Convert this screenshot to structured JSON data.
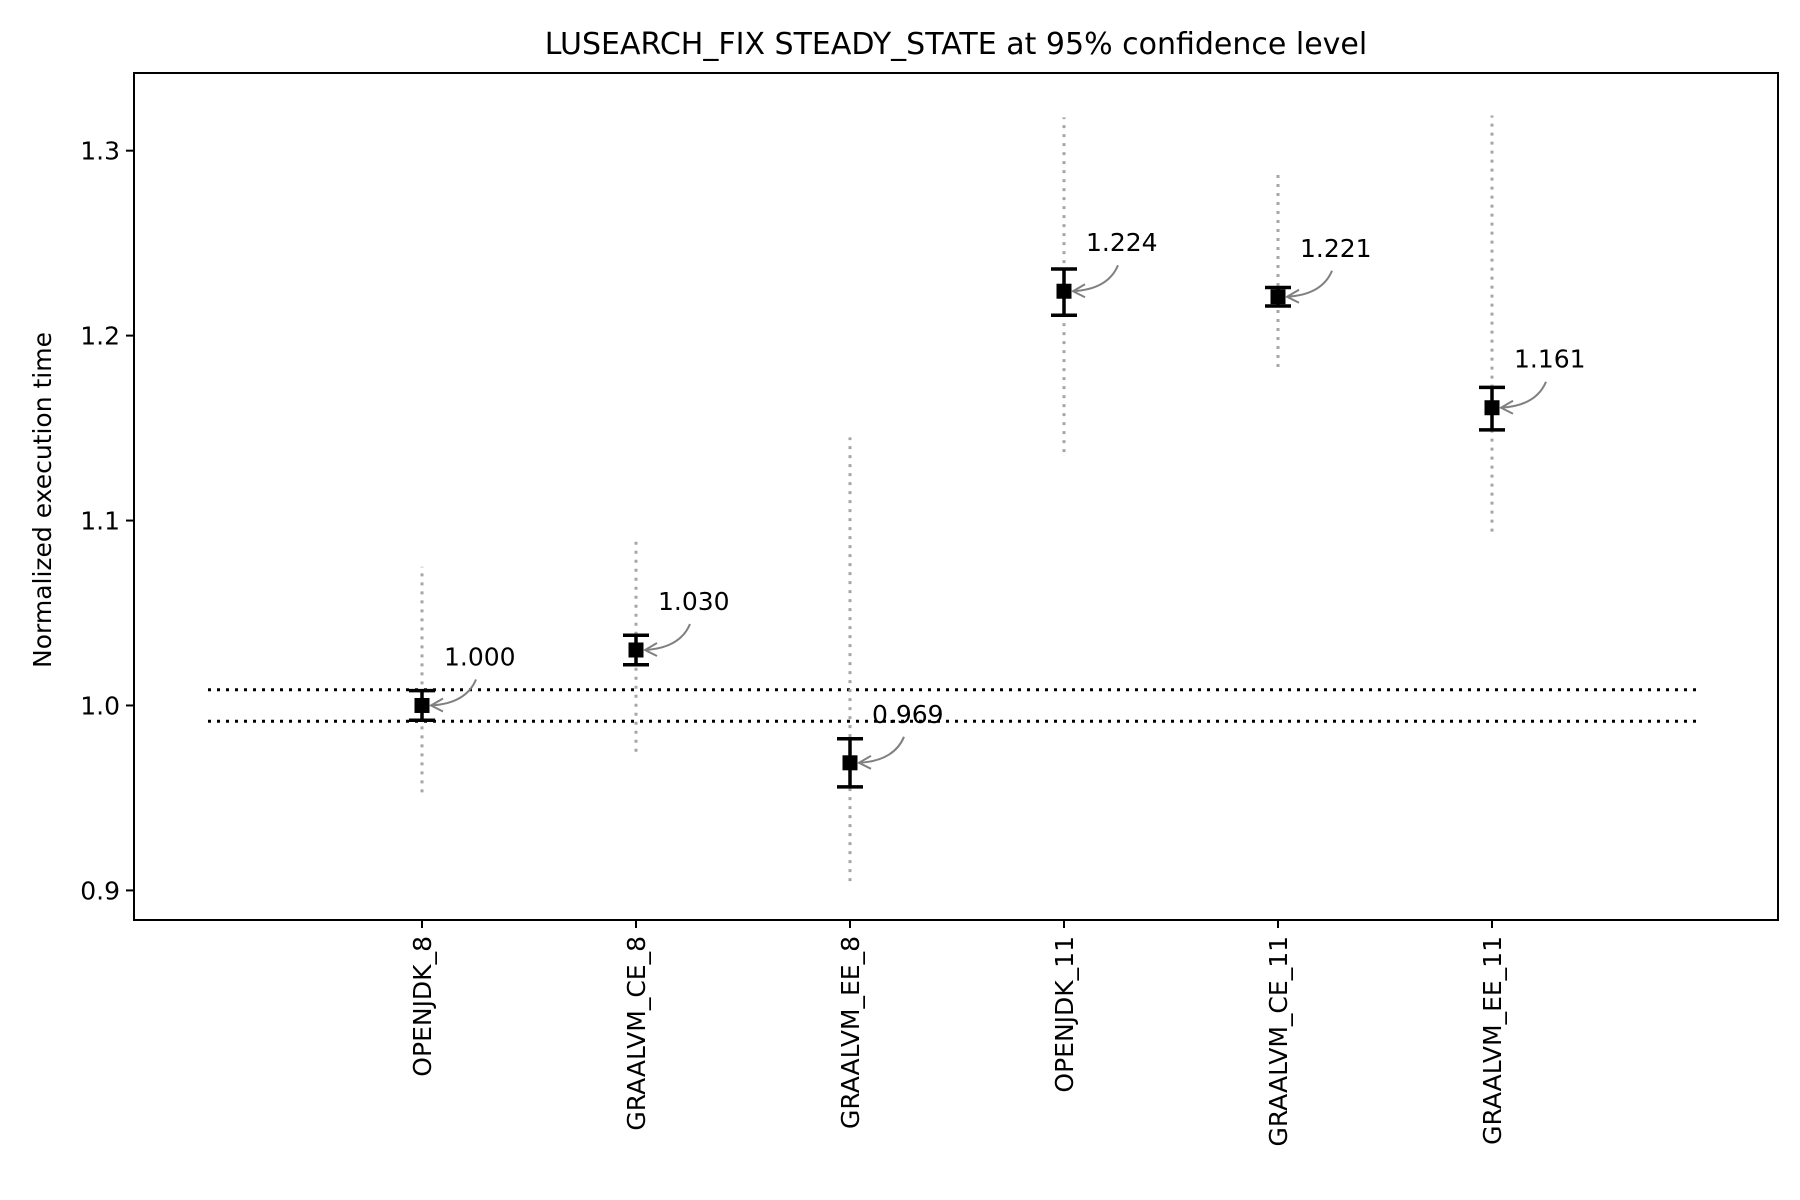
{
  "chart_data": {
    "type": "scatter",
    "title": "LUSEARCH_FIX STEADY_STATE at 95% confidence level",
    "xlabel": "",
    "ylabel": "Normalized execution time",
    "categories": [
      "OPENJDK_8",
      "GRAALVM_CE_8",
      "GRAALVM_EE_8",
      "OPENJDK_11",
      "GRAALVM_CE_11",
      "GRAALVM_EE_11"
    ],
    "values": [
      1.0,
      1.03,
      0.969,
      1.224,
      1.221,
      1.161
    ],
    "value_labels": [
      "1.000",
      "1.030",
      "0.969",
      "1.224",
      "1.221",
      "1.161"
    ],
    "ci_low": [
      0.992,
      1.022,
      0.956,
      1.211,
      1.216,
      1.149
    ],
    "ci_high": [
      1.008,
      1.038,
      0.982,
      1.236,
      1.226,
      1.172
    ],
    "range_low": [
      0.953,
      0.975,
      0.905,
      1.137,
      1.183,
      1.094
    ],
    "range_high": [
      1.075,
      1.091,
      1.145,
      1.318,
      1.288,
      1.319
    ],
    "reference_lines": [
      1.0085,
      0.9915
    ],
    "ylim": [
      0.884,
      1.342
    ],
    "yticks": [
      0.9,
      1.0,
      1.1,
      1.2,
      1.3
    ],
    "ytick_labels": [
      "0.9",
      "1.0",
      "1.1",
      "1.2",
      "1.3"
    ],
    "grid": false,
    "colors": {
      "marker": "#000000",
      "range": "#a6a6a6",
      "arrow": "#808080",
      "reference": "#000000"
    }
  }
}
